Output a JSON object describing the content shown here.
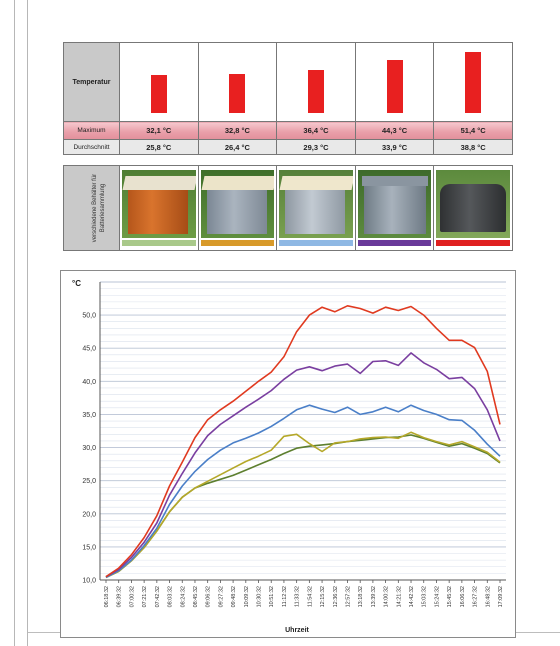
{
  "table": {
    "header_label": "Temperatur",
    "max_label": "Maximum",
    "avg_label": "Durchschnitt",
    "photos_label": "verschiedene Behälter für Batteriesammlung",
    "bar_color": "#e82020",
    "containers": [
      {
        "max": "32,1 °C",
        "avg": "25,8 °C",
        "max_value": 32.1,
        "color": "#a9c98a"
      },
      {
        "max": "32,8 °C",
        "avg": "26,4 °C",
        "max_value": 32.8,
        "color": "#d89a2a"
      },
      {
        "max": "36,4 °C",
        "avg": "29,3 °C",
        "max_value": 36.4,
        "color": "#8fb8e4"
      },
      {
        "max": "44,3 °C",
        "avg": "33,9 °C",
        "max_value": 44.3,
        "color": "#6a3a9a"
      },
      {
        "max": "51,4 °C",
        "avg": "38,8 °C",
        "max_value": 51.4,
        "color": "#e02020"
      }
    ]
  },
  "chart_data": {
    "type": "line",
    "ylabel": "°C",
    "xlabel": "Uhrzeit",
    "ylim": [
      10,
      55
    ],
    "yticks": [
      "10,0",
      "15,0",
      "20,0",
      "25,0",
      "30,0",
      "35,0",
      "40,0",
      "45,0",
      "50,0"
    ],
    "grid": true,
    "x": [
      "06:18:32",
      "06:39:32",
      "07:00:32",
      "07:21:32",
      "07:42:32",
      "08:03:32",
      "08:24:32",
      "08:45:32",
      "09:06:32",
      "09:27:32",
      "09:48:32",
      "10:09:32",
      "10:30:32",
      "10:51:32",
      "11:12:32",
      "11:33:32",
      "11:54:32",
      "12:15:32",
      "12:36:32",
      "12:57:32",
      "13:18:32",
      "13:39:32",
      "14:00:32",
      "14:21:32",
      "14:42:32",
      "15:03:32",
      "15:24:32",
      "15:45:32",
      "16:06:32",
      "16:27:32",
      "16:48:32",
      "17:09:32"
    ],
    "series": [
      {
        "color": "#e03a20",
        "values": [
          10.5,
          11.8,
          13.8,
          16.4,
          19.7,
          24.2,
          27.8,
          31.5,
          34.2,
          35.7,
          37.0,
          38.5,
          40.0,
          41.4,
          43.7,
          47.5,
          50.0,
          51.2,
          50.5,
          51.4,
          51.0,
          50.3,
          51.2,
          50.7,
          51.3,
          50.0,
          48.0,
          46.2,
          46.2,
          45.1,
          41.5,
          33.5
        ]
      },
      {
        "color": "#7a3fa0",
        "values": [
          10.5,
          11.6,
          13.4,
          15.7,
          18.6,
          22.8,
          26.1,
          29.2,
          31.8,
          33.5,
          34.8,
          36.1,
          37.3,
          38.6,
          40.3,
          41.7,
          42.2,
          41.6,
          42.3,
          42.6,
          41.2,
          43.0,
          43.1,
          42.4,
          44.3,
          42.8,
          41.8,
          40.4,
          40.6,
          38.9,
          35.7,
          31.0
        ]
      },
      {
        "color": "#4a7fc8",
        "values": [
          10.4,
          11.4,
          13.0,
          15.2,
          17.8,
          21.4,
          24.2,
          26.4,
          28.2,
          29.6,
          30.7,
          31.4,
          32.2,
          33.2,
          34.4,
          35.7,
          36.4,
          35.8,
          35.3,
          36.1,
          35.0,
          35.4,
          36.1,
          35.4,
          36.4,
          35.6,
          35.0,
          34.2,
          34.1,
          32.6,
          30.5,
          28.7
        ]
      },
      {
        "color": "#b5a82a",
        "values": [
          10.4,
          11.3,
          12.9,
          14.9,
          17.4,
          20.3,
          22.5,
          23.9,
          24.9,
          25.9,
          26.9,
          27.9,
          28.7,
          29.6,
          31.7,
          32.0,
          30.6,
          29.4,
          30.7,
          30.9,
          31.3,
          31.5,
          31.6,
          31.4,
          32.3,
          31.5,
          30.9,
          30.4,
          30.9,
          30.1,
          29.3,
          27.8
        ]
      },
      {
        "color": "#5d7f2f",
        "values": [
          10.4,
          11.3,
          12.9,
          14.9,
          17.4,
          20.3,
          22.5,
          23.9,
          24.6,
          25.2,
          25.8,
          26.6,
          27.4,
          28.2,
          29.1,
          29.9,
          30.2,
          30.4,
          30.6,
          30.9,
          31.1,
          31.3,
          31.5,
          31.6,
          31.9,
          31.4,
          30.8,
          30.2,
          30.6,
          29.9,
          29.1,
          27.7
        ]
      }
    ]
  }
}
